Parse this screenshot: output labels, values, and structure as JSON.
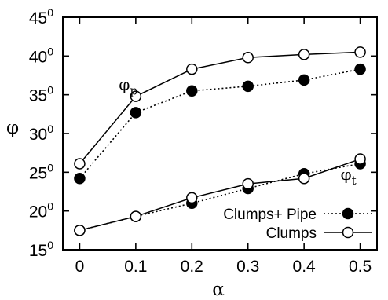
{
  "chart_data": {
    "type": "line",
    "title": "",
    "xlabel": "α",
    "ylabel": "φ",
    "x": [
      0,
      0.1,
      0.2,
      0.3,
      0.4,
      0.5
    ],
    "xtick_labels": [
      "0",
      "0.1",
      "0.2",
      "0.3",
      "0.4",
      "0.5"
    ],
    "xlim": [
      -0.03,
      0.53
    ],
    "ylim": [
      15,
      45
    ],
    "yticks": [
      {
        "value": 15,
        "label": "15",
        "sup": "0"
      },
      {
        "value": 20,
        "label": "20",
        "sup": "0"
      },
      {
        "value": 25,
        "label": "25",
        "sup": "0"
      },
      {
        "value": 30,
        "label": "30",
        "sup": "0"
      },
      {
        "value": 35,
        "label": "35",
        "sup": "0"
      },
      {
        "value": 40,
        "label": "40",
        "sup": "0"
      },
      {
        "value": 45,
        "label": "45",
        "sup": "0"
      }
    ],
    "grid": false,
    "legend_position": "bottom-right",
    "series": [
      {
        "name": "Clumps+ Pipe",
        "group": "phi_p",
        "style": "dotted",
        "marker": "filled-circle",
        "values": [
          24.2,
          32.7,
          35.5,
          36.1,
          36.9,
          38.3
        ]
      },
      {
        "name": "Clumps",
        "group": "phi_p",
        "style": "solid",
        "marker": "open-circle",
        "values": [
          26.1,
          34.8,
          38.3,
          39.8,
          40.2,
          40.5
        ]
      },
      {
        "name": "Clumps+ Pipe",
        "group": "phi_t",
        "style": "dotted",
        "marker": "filled-circle",
        "values": [
          17.5,
          19.3,
          21.0,
          22.9,
          24.8,
          26.1
        ]
      },
      {
        "name": "Clumps",
        "group": "phi_t",
        "style": "solid",
        "marker": "open-circle",
        "values": [
          17.5,
          19.3,
          21.7,
          23.5,
          24.2,
          26.7
        ]
      }
    ],
    "legend": [
      {
        "label": "Clumps+ Pipe",
        "style": "dotted",
        "marker": "filled-circle"
      },
      {
        "label": "Clumps",
        "style": "solid",
        "marker": "open-circle"
      }
    ],
    "annotations": [
      {
        "id": "phi-p",
        "symbol": "φ",
        "sub": "p",
        "x": 0.07,
        "y": 35.6
      },
      {
        "id": "phi-t",
        "symbol": "φ",
        "sub": "t",
        "x": 0.465,
        "y": 24.0
      }
    ]
  }
}
